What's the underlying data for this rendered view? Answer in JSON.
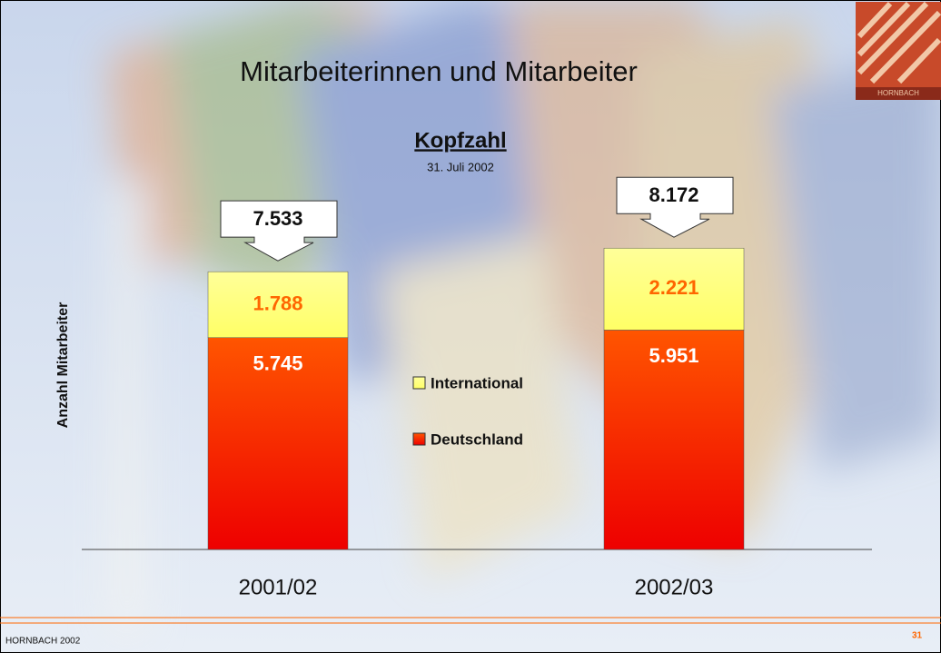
{
  "slide": {
    "title": "Mitarbeiterinnen und Mitarbeiter",
    "footer": "HORNBACH 2002",
    "page_number": "31",
    "logo_text": "HORNBACH"
  },
  "chart_data": {
    "type": "bar",
    "stacked": true,
    "title": "Kopfzahl",
    "subtitle": "31. Juli 2002",
    "y_label": "Anzahl Mitarbeiter",
    "categories": [
      "2001/02",
      "2002/03"
    ],
    "series": [
      {
        "name": "Deutschland",
        "color": "#ff2a00",
        "values": [
          5745,
          5951
        ],
        "value_labels": [
          "5.745",
          "5.951"
        ]
      },
      {
        "name": "International",
        "color": "#ffff99",
        "values": [
          1788,
          2221
        ],
        "value_labels": [
          "1.788",
          "2.221"
        ]
      }
    ],
    "totals": {
      "values": [
        7533,
        8172
      ],
      "value_labels": [
        "7.533",
        "8.172"
      ]
    }
  }
}
